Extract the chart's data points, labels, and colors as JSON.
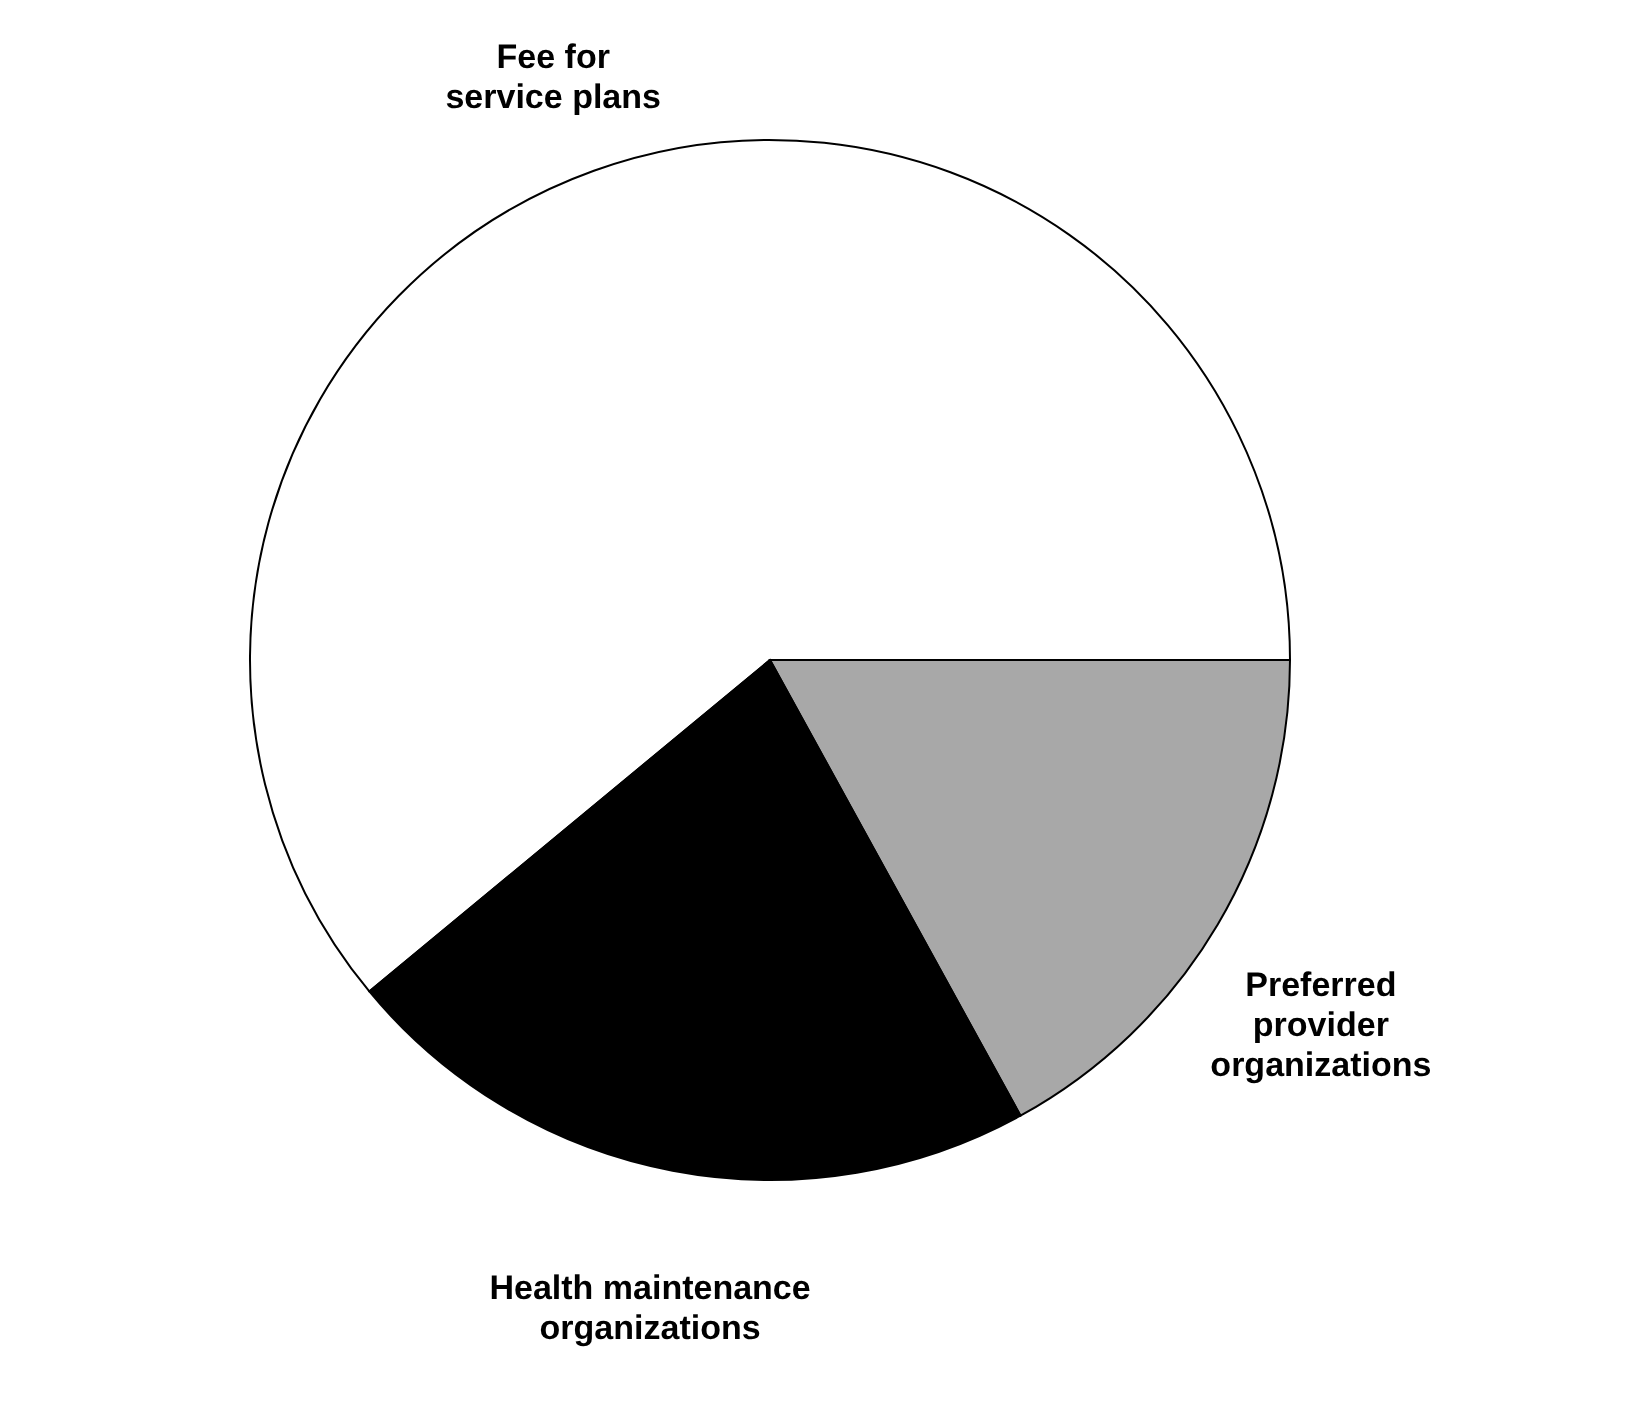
{
  "chart_data": {
    "type": "pie",
    "categories": [
      "Fee for\nservice plans",
      "Preferred\nprovider\norganizations",
      "Health maintenance\norganizations"
    ],
    "values": [
      61,
      17,
      22
    ],
    "colors": [
      "#ffffff",
      "#a8a8a8",
      "#000000"
    ]
  }
}
